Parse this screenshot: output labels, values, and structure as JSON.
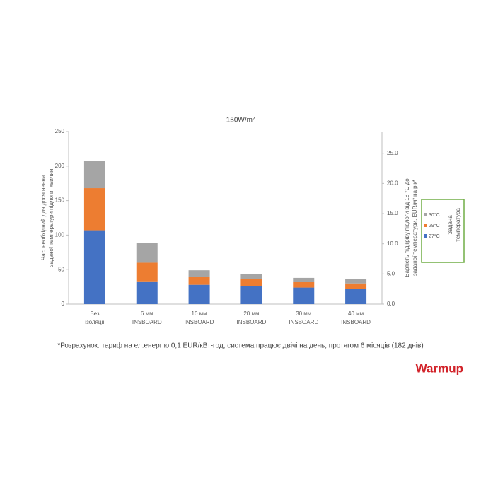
{
  "chart_data": {
    "type": "bar",
    "stacked": true,
    "title": "150W/m²",
    "categories": [
      [
        "Без",
        "ізоляції"
      ],
      [
        "6 мм",
        "INSBOARD"
      ],
      [
        "10 мм",
        "INSBOARD"
      ],
      [
        "20 мм",
        "INSBOARD"
      ],
      [
        "30 мм",
        "INSBOARD"
      ],
      [
        "40 мм",
        "INSBOARD"
      ]
    ],
    "series": [
      {
        "name": "27°C",
        "color": "#4472c4",
        "values": [
          107,
          33,
          28,
          26,
          24,
          22
        ]
      },
      {
        "name": "29°C",
        "color": "#ed7d31",
        "values": [
          61,
          27,
          11,
          10,
          8,
          8
        ]
      },
      {
        "name": "30°C",
        "color": "#a5a5a5",
        "values": [
          39,
          29,
          10,
          8,
          6,
          6
        ]
      }
    ],
    "ylim": [
      0,
      250
    ],
    "yticks": [
      0,
      50,
      100,
      150,
      200,
      250
    ],
    "y2lim": [
      0,
      28.6
    ],
    "y2ticks": [
      {
        "value": 0,
        "label": "0.0"
      },
      {
        "value": 5,
        "label": "5.0"
      },
      {
        "value": 10,
        "label": "10.0"
      },
      {
        "value": 15,
        "label": "15.0"
      },
      {
        "value": 20,
        "label": "20.0"
      },
      {
        "value": 25,
        "label": "25.0"
      }
    ],
    "ylabel": [
      "Час, необхідний для досягнення",
      "заданої температури підлоги, хвилин"
    ],
    "y2label": [
      "Вартість підігріву підлоги від 18 °C до",
      "заданої температури,  EUR/м² на рік*"
    ],
    "legend_title": [
      "Задана",
      "температура"
    ],
    "legend_color": "#70ad47",
    "footnote": "*Розрахунок: тариф на ел.енергію 0,1  EUR/кВт-год, система працює двічі на день, протягом 6 місяців (182 днів)",
    "logo": "Warmup",
    "logo_color": "#d2232a"
  }
}
